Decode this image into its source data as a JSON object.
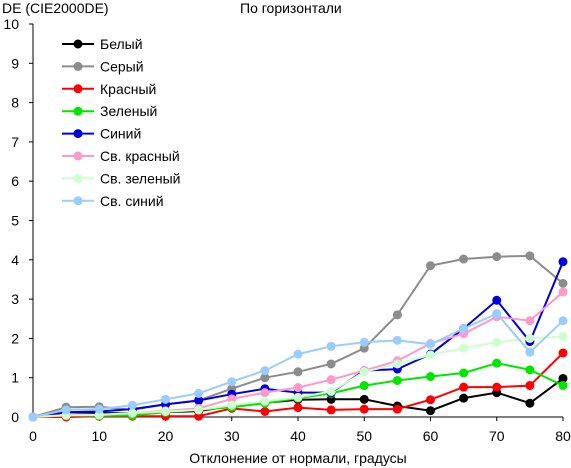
{
  "chart_data": {
    "type": "line",
    "title": "По горизонтали",
    "ylabel": "DE (CIE2000DE)",
    "xlabel": "Отклонение от нормали, градусы",
    "x": [
      0,
      5,
      10,
      15,
      20,
      25,
      30,
      35,
      40,
      45,
      50,
      55,
      60,
      65,
      70,
      75,
      80
    ],
    "xticks": [
      0,
      10,
      20,
      30,
      40,
      50,
      60,
      70,
      80
    ],
    "yticks": [
      0,
      1,
      2,
      3,
      4,
      5,
      6,
      7,
      8,
      9,
      10
    ],
    "xlim": [
      0,
      80
    ],
    "ylim": [
      0,
      10
    ],
    "grid": false,
    "legend_position": "top-left",
    "series": [
      {
        "name": "Белый",
        "color": "#000000",
        "values": [
          0.0,
          0.12,
          0.1,
          0.1,
          0.12,
          0.15,
          0.28,
          0.36,
          0.44,
          0.45,
          0.45,
          0.28,
          0.16,
          0.48,
          0.62,
          0.35,
          0.98
        ]
      },
      {
        "name": "Серый",
        "color": "#8c8c8c",
        "values": [
          0.0,
          0.25,
          0.26,
          0.18,
          0.32,
          0.42,
          0.72,
          1.0,
          1.15,
          1.35,
          1.75,
          2.6,
          3.85,
          4.02,
          4.08,
          4.1,
          3.4
        ]
      },
      {
        "name": "Красный",
        "color": "#ff0000",
        "values": [
          0.0,
          0.0,
          0.02,
          0.02,
          0.02,
          0.02,
          0.22,
          0.14,
          0.24,
          0.18,
          0.2,
          0.2,
          0.44,
          0.76,
          0.76,
          0.8,
          1.63
        ]
      },
      {
        "name": "Зеленый",
        "color": "#00e600",
        "values": [
          0.0,
          0.04,
          0.03,
          0.04,
          0.12,
          0.18,
          0.25,
          0.35,
          0.48,
          0.6,
          0.8,
          0.93,
          1.03,
          1.12,
          1.37,
          1.2,
          0.8
        ]
      },
      {
        "name": "Синий",
        "color": "#0000dd",
        "values": [
          0.0,
          0.12,
          0.14,
          0.2,
          0.32,
          0.42,
          0.58,
          0.72,
          0.62,
          0.62,
          1.18,
          1.22,
          1.6,
          2.25,
          2.97,
          1.92,
          3.95
        ]
      },
      {
        "name": "Св. красный",
        "color": "#ff99cc",
        "values": [
          0.0,
          0.05,
          0.06,
          0.1,
          0.16,
          0.22,
          0.46,
          0.62,
          0.75,
          0.95,
          1.18,
          1.43,
          1.87,
          2.12,
          2.55,
          2.45,
          3.18
        ]
      },
      {
        "name": "Св. зеленый",
        "color": "#ccffcc",
        "values": [
          0.0,
          0.04,
          0.05,
          0.1,
          0.14,
          0.18,
          0.3,
          0.4,
          0.5,
          0.65,
          1.15,
          1.35,
          1.58,
          1.75,
          1.9,
          2.0,
          2.05
        ]
      },
      {
        "name": "Св. синий",
        "color": "#99ccff",
        "values": [
          0.0,
          0.18,
          0.2,
          0.3,
          0.45,
          0.6,
          0.9,
          1.18,
          1.6,
          1.8,
          1.9,
          1.95,
          1.85,
          2.25,
          2.63,
          1.65,
          2.45
        ]
      }
    ]
  }
}
